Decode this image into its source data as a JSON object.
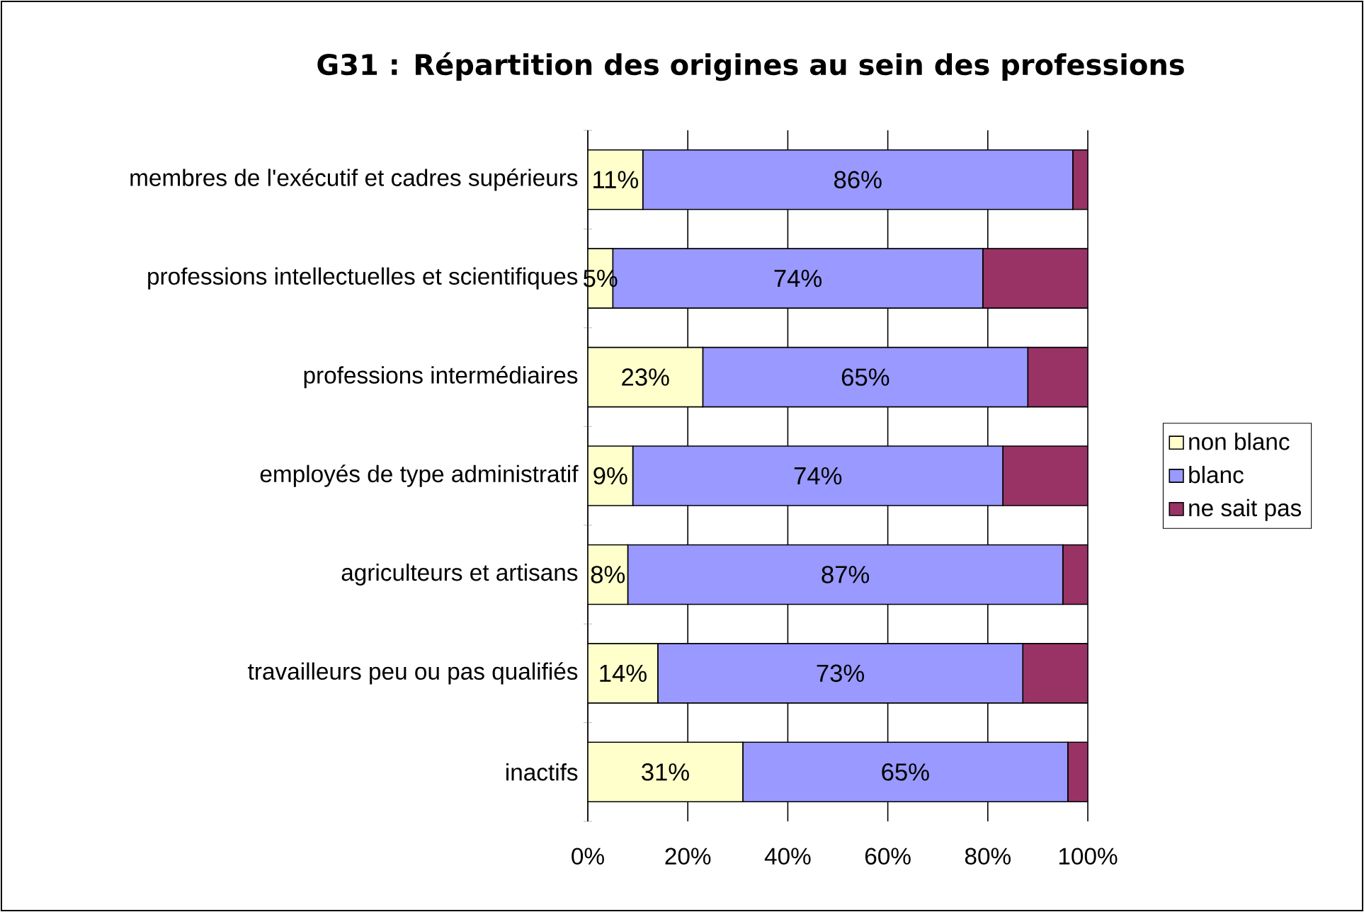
{
  "chart_data": {
    "type": "bar",
    "orientation": "horizontal",
    "stacked": true,
    "title": "G31 : Répartition des origines au sein des professions",
    "categories": [
      "membres de l'exécutif et cadres supérieurs",
      "professions intellectuelles et scientifiques",
      "professions intermédiaires",
      "employés de type administratif",
      "agriculteurs et artisans",
      "travailleurs peu ou pas qualifiés",
      "inactifs"
    ],
    "series": [
      {
        "name": "non blanc",
        "color": "#ffffcc",
        "values": [
          11,
          5,
          23,
          9,
          8,
          14,
          31
        ],
        "value_labels": [
          "11%",
          "5%",
          "23%",
          "9%",
          "8%",
          "14%",
          "31%"
        ]
      },
      {
        "name": "blanc",
        "color": "#9999ff",
        "values": [
          86,
          74,
          65,
          74,
          87,
          73,
          65
        ],
        "value_labels": [
          "86%",
          "74%",
          "65%",
          "74%",
          "87%",
          "73%",
          "65%"
        ]
      },
      {
        "name": "ne sait pas",
        "color": "#993366",
        "values": [
          3,
          21,
          12,
          17,
          5,
          13,
          4
        ]
      }
    ],
    "xlim": [
      0,
      100
    ],
    "xticks": [
      {
        "value": 0,
        "label": "0%"
      },
      {
        "value": 20,
        "label": "20%"
      },
      {
        "value": 40,
        "label": "40%"
      },
      {
        "value": 60,
        "label": "60%"
      },
      {
        "value": 80,
        "label": "80%"
      },
      {
        "value": 100,
        "label": "100%"
      }
    ],
    "grid": "x",
    "legend": "right"
  }
}
